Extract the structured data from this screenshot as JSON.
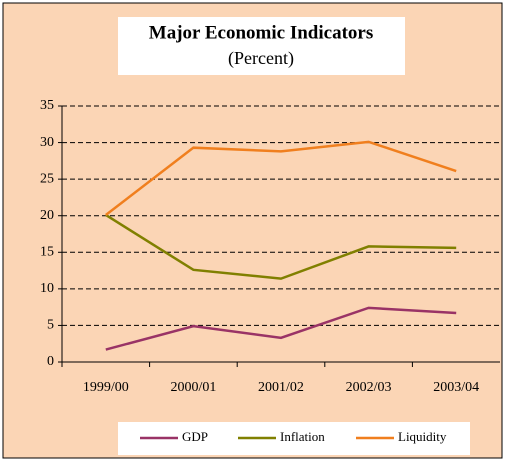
{
  "chart_data": {
    "type": "line",
    "title": "Major Economic Indicators",
    "subtitle": "(Percent)",
    "categories": [
      "1999/00",
      "2000/01",
      "2001/02",
      "2002/03",
      "2003/04"
    ],
    "series": [
      {
        "name": "GDP",
        "color": "#993366",
        "values": [
          1.7,
          4.9,
          3.3,
          7.4,
          6.7
        ]
      },
      {
        "name": "Inflation",
        "color": "#808000",
        "values": [
          20.1,
          12.6,
          11.4,
          15.8,
          15.6
        ]
      },
      {
        "name": "Liquidity",
        "color": "#f07f1e",
        "values": [
          20.1,
          29.3,
          28.8,
          30.1,
          26.1
        ]
      }
    ],
    "ylim": [
      0,
      35
    ],
    "yticks": [
      0,
      5,
      10,
      15,
      20,
      25,
      30,
      35
    ],
    "grid": true,
    "legend": "bottom"
  }
}
